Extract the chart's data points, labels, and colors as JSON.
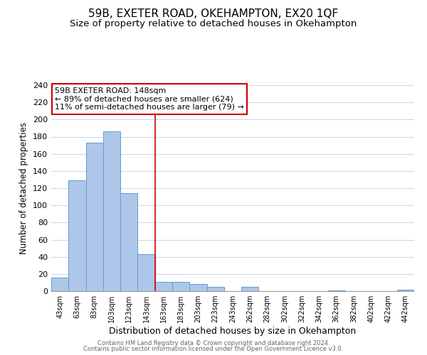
{
  "title": "59B, EXETER ROAD, OKEHAMPTON, EX20 1QF",
  "subtitle": "Size of property relative to detached houses in Okehampton",
  "xlabel": "Distribution of detached houses by size in Okehampton",
  "ylabel": "Number of detached properties",
  "bar_labels": [
    "43sqm",
    "63sqm",
    "83sqm",
    "103sqm",
    "123sqm",
    "143sqm",
    "163sqm",
    "183sqm",
    "203sqm",
    "223sqm",
    "243sqm",
    "262sqm",
    "282sqm",
    "302sqm",
    "322sqm",
    "342sqm",
    "362sqm",
    "382sqm",
    "402sqm",
    "422sqm",
    "442sqm"
  ],
  "bar_values": [
    16,
    129,
    173,
    186,
    114,
    43,
    11,
    11,
    8,
    5,
    0,
    5,
    0,
    0,
    0,
    0,
    1,
    0,
    0,
    0,
    2
  ],
  "bar_color": "#aec6e8",
  "bar_edge_color": "#5a9fd4",
  "vline_x": 5.5,
  "vline_color": "#cc0000",
  "ylim": [
    0,
    240
  ],
  "yticks": [
    0,
    20,
    40,
    60,
    80,
    100,
    120,
    140,
    160,
    180,
    200,
    220,
    240
  ],
  "annotation_title": "59B EXETER ROAD: 148sqm",
  "annotation_line1": "← 89% of detached houses are smaller (624)",
  "annotation_line2": "11% of semi-detached houses are larger (79) →",
  "annotation_box_color": "#ffffff",
  "annotation_box_edge": "#cc0000",
  "footer_line1": "Contains HM Land Registry data © Crown copyright and database right 2024.",
  "footer_line2": "Contains public sector information licensed under the Open Government Licence v3.0.",
  "background_color": "#ffffff",
  "grid_color": "#d0d8e8",
  "title_fontsize": 11,
  "subtitle_fontsize": 9.5
}
